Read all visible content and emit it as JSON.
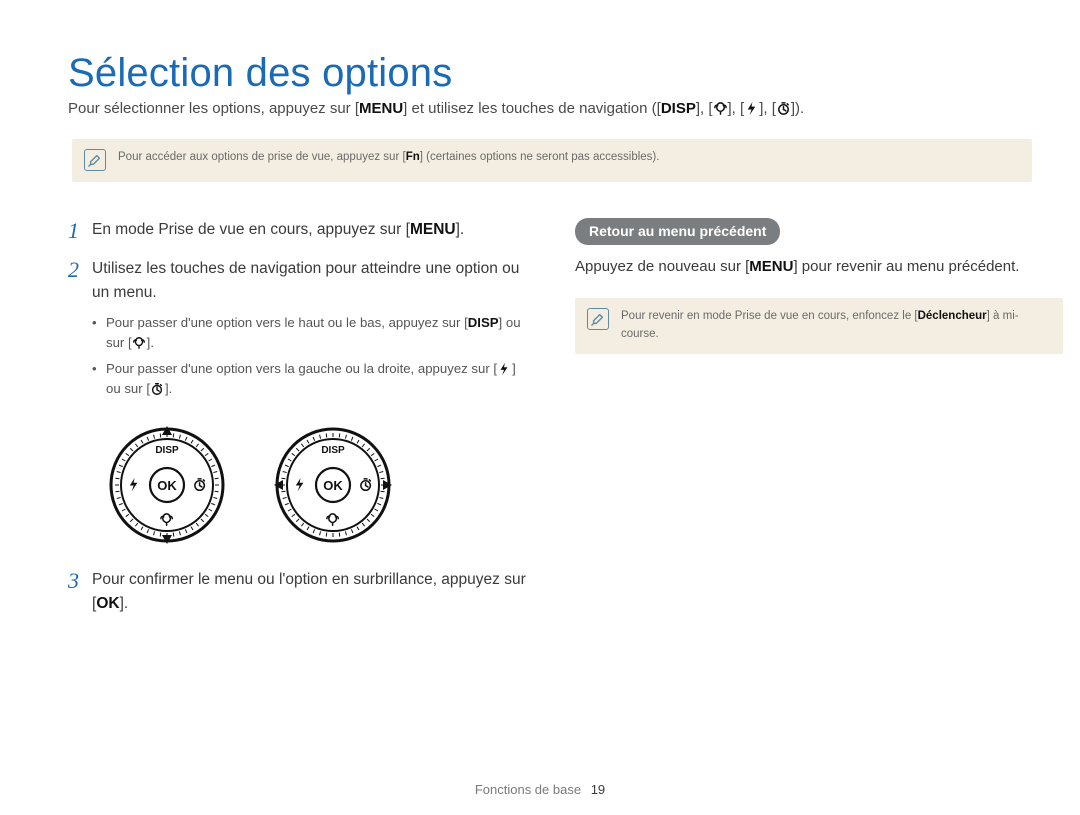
{
  "title": "Sélection des options",
  "intro_a": "Pour sélectionner les options, appuyez sur [",
  "intro_menu": "MENU",
  "intro_b": "] et utilisez les touches de navigation ([",
  "intro_disp": "DISP",
  "intro_c": "], [",
  "intro_d": "], [",
  "intro_e": "], [",
  "intro_f": "]).",
  "note1_a": "Pour accéder aux options de prise de vue, appuyez sur [",
  "note1_fn": "Fn",
  "note1_b": "] (certaines options ne seront pas accessibles).",
  "steps": {
    "s1n": "1",
    "s1a": "En mode Prise de vue en cours, appuyez sur [",
    "s1menu": "MENU",
    "s1b": "].",
    "s2n": "2",
    "s2a": "Utilisez les touches de navigation pour atteindre une option ou un menu.",
    "s2_sub1_a": "Pour passer d'une option vers le haut ou le bas, appuyez sur [",
    "s2_sub1_disp": "DISP",
    "s2_sub1_b": "] ou sur [",
    "s2_sub1_c": "].",
    "s2_sub2_a": "Pour passer d'une option vers la gauche ou la droite, appuyez sur [",
    "s2_sub2_b": "] ou sur [",
    "s2_sub2_c": "].",
    "s3n": "3",
    "s3a": "Pour confirmer le menu ou l'option en surbrillance, appuyez sur [",
    "s3ok": "OK",
    "s3b": "]."
  },
  "dial": {
    "top": "DISP",
    "center": "OK"
  },
  "right": {
    "pill": "Retour au menu précédent",
    "r_a": "Appuyez de nouveau sur [",
    "r_menu": "MENU",
    "r_b": "] pour revenir au menu précédent.",
    "note_a": "Pour revenir en mode Prise de vue en cours, enfoncez le [",
    "note_bold": "Déclencheur",
    "note_b": "] à mi-course."
  },
  "footer": {
    "section": "Fonctions de base",
    "page": "19"
  },
  "colors": {
    "accent": "#1a6ab5",
    "note_bg": "#f4eee2",
    "note_icon": "#5f8ca0",
    "pill_bg": "#7b7e80",
    "text": "#3a3a3a"
  }
}
